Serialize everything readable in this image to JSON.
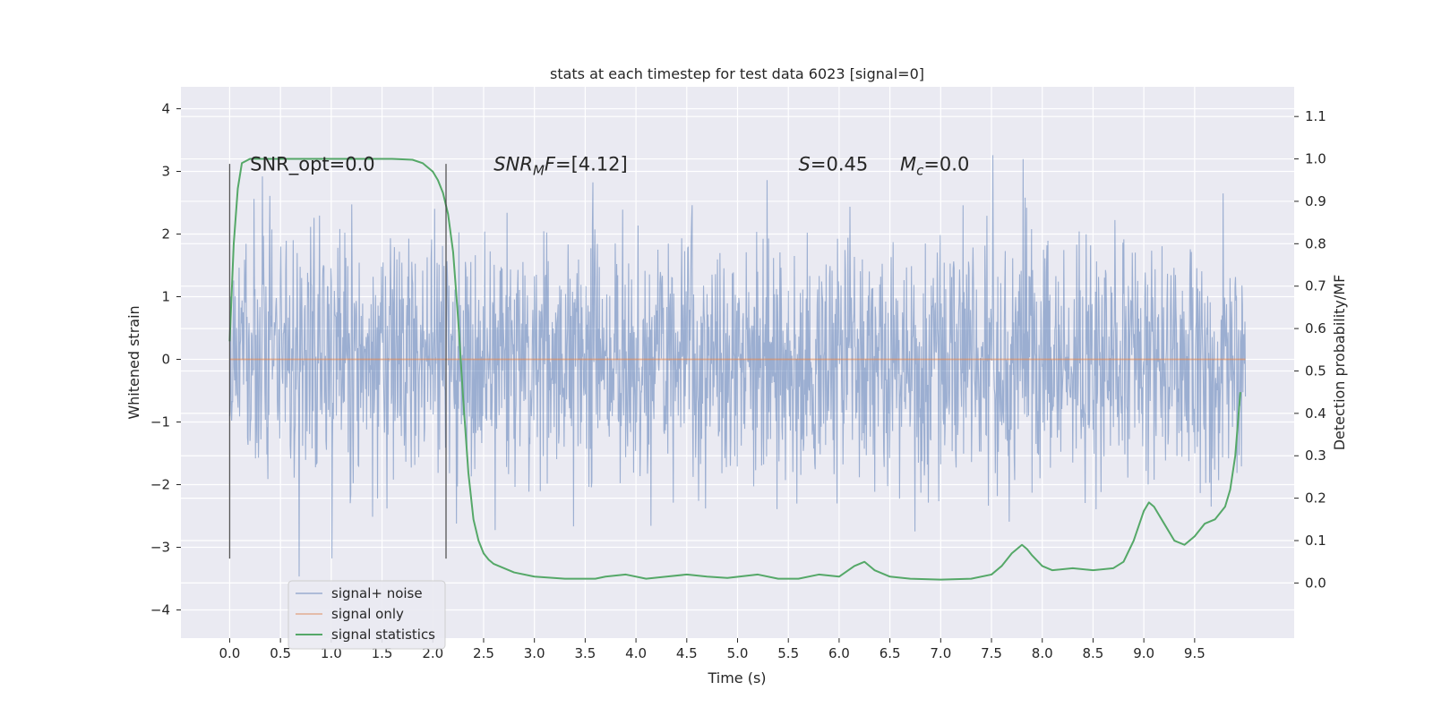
{
  "chart_data": {
    "type": "line",
    "title": "stats at each timestep for test data 6023 [signal=0]",
    "xlabel": "Time (s)",
    "ylabel": "Whitened strain",
    "y2label": "Detection probability/MF",
    "xlim": [
      -0.48,
      10.48
    ],
    "ylim": [
      -4.45,
      4.35
    ],
    "y2lim": [
      -0.13,
      1.17
    ],
    "xticks": [
      "0.0",
      "0.5",
      "1.0",
      "1.5",
      "2.0",
      "2.5",
      "3.0",
      "3.5",
      "4.0",
      "4.5",
      "5.0",
      "5.5",
      "6.0",
      "6.5",
      "7.0",
      "7.5",
      "8.0",
      "8.5",
      "9.0",
      "9.5"
    ],
    "yticks": [
      "−4",
      "−3",
      "−2",
      "−1",
      "0",
      "1",
      "2",
      "3",
      "4"
    ],
    "y2ticks": [
      "0.0",
      "0.1",
      "0.2",
      "0.3",
      "0.4",
      "0.5",
      "0.6",
      "0.7",
      "0.8",
      "0.9",
      "1.0",
      "1.1"
    ],
    "grid": true,
    "legend_position": "lower-left",
    "annotations": [
      {
        "label": "SNR_opt=0.0",
        "x": 0.2,
        "y": 3.1
      },
      {
        "var": "SNR",
        "sub": "M",
        "var2": "F",
        "rest": "=[4.12]",
        "x": 2.6,
        "y": 3.1
      },
      {
        "var": "S",
        "rest": "=0.45",
        "x": 5.6,
        "y": 3.1
      },
      {
        "var": "M",
        "sub": "c",
        "rest": "=0.0",
        "x": 6.6,
        "y": 3.1
      }
    ],
    "vlines": [
      {
        "x": 0.0,
        "ymin": -3.18,
        "ymax": 3.12
      },
      {
        "x": 2.13,
        "ymin": -3.18,
        "ymax": 3.12
      }
    ],
    "series": [
      {
        "name": "signal+ noise",
        "axis": "left",
        "color": "#4c72b0",
        "noise_model": {
          "x_start": 0.0,
          "x_end": 10.0,
          "n_samples": 2048,
          "sigma": 1.0,
          "seed": 6023
        }
      },
      {
        "name": "signal only",
        "axis": "left",
        "color": "#dd8452",
        "x": [
          0.0,
          10.0
        ],
        "y": [
          0.0,
          0.0
        ]
      },
      {
        "name": "signal statistics",
        "axis": "right",
        "color": "#55a868",
        "x": [
          0.0,
          0.04,
          0.08,
          0.12,
          0.2,
          0.4,
          0.8,
          1.2,
          1.6,
          1.8,
          1.9,
          2.0,
          2.05,
          2.1,
          2.15,
          2.2,
          2.25,
          2.3,
          2.35,
          2.4,
          2.45,
          2.5,
          2.55,
          2.6,
          2.7,
          2.8,
          3.0,
          3.3,
          3.6,
          3.7,
          3.9,
          4.1,
          4.3,
          4.5,
          4.7,
          4.9,
          5.2,
          5.4,
          5.6,
          5.8,
          6.0,
          6.15,
          6.25,
          6.35,
          6.5,
          6.7,
          7.0,
          7.3,
          7.5,
          7.6,
          7.7,
          7.8,
          7.85,
          7.9,
          8.0,
          8.1,
          8.3,
          8.5,
          8.7,
          8.8,
          8.9,
          9.0,
          9.05,
          9.1,
          9.2,
          9.3,
          9.4,
          9.5,
          9.6,
          9.7,
          9.8,
          9.85,
          9.9,
          9.95
        ],
        "y": [
          0.57,
          0.8,
          0.93,
          0.99,
          1.0,
          1.0,
          1.0,
          1.0,
          1.0,
          0.998,
          0.99,
          0.97,
          0.95,
          0.92,
          0.87,
          0.78,
          0.62,
          0.43,
          0.26,
          0.15,
          0.1,
          0.07,
          0.055,
          0.045,
          0.035,
          0.025,
          0.015,
          0.01,
          0.01,
          0.015,
          0.02,
          0.01,
          0.015,
          0.02,
          0.015,
          0.012,
          0.02,
          0.01,
          0.01,
          0.02,
          0.015,
          0.04,
          0.05,
          0.03,
          0.015,
          0.01,
          0.008,
          0.01,
          0.02,
          0.04,
          0.07,
          0.09,
          0.08,
          0.065,
          0.04,
          0.03,
          0.035,
          0.03,
          0.035,
          0.05,
          0.1,
          0.17,
          0.19,
          0.18,
          0.14,
          0.1,
          0.09,
          0.11,
          0.14,
          0.15,
          0.18,
          0.22,
          0.3,
          0.45
        ]
      }
    ]
  }
}
